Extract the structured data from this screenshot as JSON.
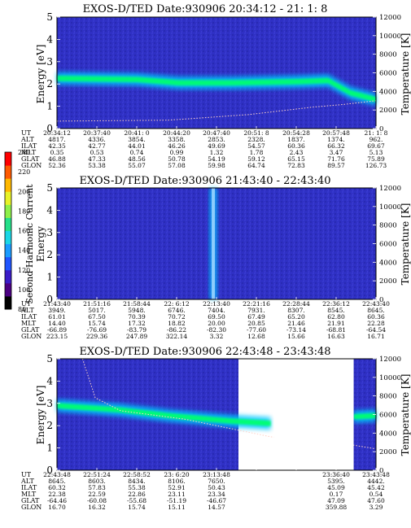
{
  "chart_data": [
    {
      "type": "heatmap",
      "title": "EXOS-D/TED   Date:930906  20:34:12 - 21: 1: 8",
      "ylabel": "Energy [eV]",
      "y2label": "Temperature [K]",
      "ylim": [
        0,
        5
      ],
      "y2lim": [
        0,
        12000
      ],
      "yticks": [
        "0",
        "1",
        "2",
        "3",
        "4",
        "5"
      ],
      "y2ticks": [
        "0",
        "2000",
        "4000",
        "6000",
        "8000",
        "10000",
        "12000"
      ],
      "rows": [
        {
          "label": "UT",
          "values": [
            "20:34:12",
            "20:37:40",
            "20:41: 0",
            "20:44:20",
            "20:47:40",
            "20:51: 8",
            "20:54:28",
            "20:57:48",
            "21: 1: 8"
          ]
        },
        {
          "label": "ALT",
          "values": [
            "4817.",
            "4336.",
            "3854.",
            "3358.",
            "2853.",
            "2328.",
            "1837.",
            "1374.",
            "962."
          ]
        },
        {
          "label": "ILAT",
          "values": [
            "42.35",
            "42.77",
            "44.01",
            "46.26",
            "49.69",
            "54.57",
            "60.36",
            "66.32",
            "69.67"
          ]
        },
        {
          "label": "MLT",
          "values": [
            "0.35",
            "0.53",
            "0.74",
            "0.99",
            "1.32",
            "1.78",
            "2.43",
            "3.47",
            "5.13"
          ]
        },
        {
          "label": "GLAT",
          "values": [
            "46.88",
            "47.33",
            "48.56",
            "50.78",
            "54.19",
            "59.12",
            "65.15",
            "71.76",
            "75.89"
          ]
        },
        {
          "label": "GLON",
          "values": [
            "52.36",
            "53.38",
            "55.07",
            "57.08",
            "59.98",
            "64.74",
            "72.83",
            "89.57",
            "126.73"
          ]
        }
      ],
      "band": [
        {
          "t": 0.0,
          "e": 2.25
        },
        {
          "t": 0.25,
          "e": 2.2
        },
        {
          "t": 0.38,
          "e": 2.05
        },
        {
          "t": 0.55,
          "e": 2.05
        },
        {
          "t": 0.75,
          "e": 2.1
        },
        {
          "t": 0.85,
          "e": 2.15
        },
        {
          "t": 0.92,
          "e": 1.6
        },
        {
          "t": 1.0,
          "e": 1.3
        }
      ],
      "temperature_K": [
        {
          "t": 0.0,
          "k": 800
        },
        {
          "t": 0.35,
          "k": 900
        },
        {
          "t": 0.6,
          "k": 1500
        },
        {
          "t": 0.8,
          "k": 2300
        },
        {
          "t": 0.9,
          "k": 2600
        },
        {
          "t": 1.0,
          "k": 3000
        }
      ]
    },
    {
      "type": "heatmap",
      "title": "EXOS-D/TED   Date:930906  21:43:40 - 22:43:40",
      "ylabel": "Energy",
      "y2label": "Temperature [K]",
      "ylim": [
        0,
        5
      ],
      "y2lim": [
        0,
        12000
      ],
      "yticks": [
        "0",
        "1",
        "2",
        "3",
        "4",
        "5"
      ],
      "y2ticks": [
        "0",
        "2000",
        "4000",
        "6000",
        "8000",
        "10000",
        "12000"
      ],
      "rows": [
        {
          "label": "UT",
          "values": [
            "21:43:40",
            "21:51:16",
            "21:58:44",
            "22: 6:12",
            "22:13:40",
            "22:21:16",
            "22:28:44",
            "22:36:12",
            "22:43:40"
          ]
        },
        {
          "label": "ALT",
          "values": [
            "3949.",
            "5017.",
            "5948.",
            "6746.",
            "7404.",
            "7931.",
            "8307.",
            "8545.",
            "8645."
          ]
        },
        {
          "label": "ILAT",
          "values": [
            "61.01",
            "67.50",
            "70.39",
            "70.72",
            "69.50",
            "67.49",
            "65.20",
            "62.80",
            "60.36"
          ]
        },
        {
          "label": "MLT",
          "values": [
            "14.40",
            "15.74",
            "17.32",
            "18.82",
            "20.00",
            "20.85",
            "21.46",
            "21.91",
            "22.28"
          ]
        },
        {
          "label": "GLAT",
          "values": [
            "-66.89",
            "-76.69",
            "-83.79",
            "-86.22",
            "-82.30",
            "-77.60",
            "-73.14",
            "-68.81",
            "-64.54"
          ]
        },
        {
          "label": "GLON",
          "values": [
            "223.15",
            "229.36",
            "247.89",
            "322.14",
            "3.32",
            "12.68",
            "15.66",
            "16.63",
            "16.71"
          ]
        }
      ],
      "spike_time_fraction": 0.49
    },
    {
      "type": "heatmap",
      "title": "EXOS-D/TED   Date:930906  22:43:48 - 23:43:48",
      "ylabel": "Energy [eV]",
      "y2label": "Temperature [K]",
      "ylim": [
        0,
        5
      ],
      "y2lim": [
        0,
        12000
      ],
      "yticks": [
        "0",
        "1",
        "2",
        "3",
        "4",
        "5"
      ],
      "y2ticks": [
        "0",
        "2000",
        "4000",
        "6000",
        "8000",
        "10000",
        "12000"
      ],
      "rows": [
        {
          "label": "UT",
          "values": [
            "22:43:48",
            "22:51:24",
            "22:58:52",
            "23: 6:20",
            "23:13:48",
            "",
            "",
            "23:36:40",
            "23:43:48"
          ]
        },
        {
          "label": "ALT",
          "values": [
            "8645.",
            "8603.",
            "8434.",
            "8106.",
            "7650.",
            "",
            "",
            "5395.",
            "4442."
          ]
        },
        {
          "label": "ILAT",
          "values": [
            "60.32",
            "57.83",
            "55.38",
            "52.91",
            "50.43",
            "",
            "",
            "45.09",
            "45.42"
          ]
        },
        {
          "label": "MLT",
          "values": [
            "22.38",
            "22.59",
            "22.86",
            "23.11",
            "23.34",
            "",
            "",
            "0.17",
            "0.54"
          ]
        },
        {
          "label": "GLAT",
          "values": [
            "-64.46",
            "-60.08",
            "-55.68",
            "-51.19",
            "-46.67",
            "",
            "",
            "47.09",
            "47.60"
          ]
        },
        {
          "label": "GLON",
          "values": [
            "16.70",
            "16.32",
            "15.74",
            "15.11",
            "14.57",
            "",
            "",
            "359.88",
            "3.29"
          ]
        }
      ],
      "band": [
        {
          "t": 0.0,
          "e": 2.9
        },
        {
          "t": 0.2,
          "e": 2.7
        },
        {
          "t": 0.35,
          "e": 2.45
        },
        {
          "t": 0.55,
          "e": 2.2
        },
        {
          "t": 0.67,
          "e": 2.1
        }
      ],
      "band2": [
        {
          "t": 0.93,
          "e": 2.4
        },
        {
          "t": 1.0,
          "e": 2.45
        }
      ],
      "data_gap_time_fraction": [
        0.68,
        0.93
      ],
      "temperature_K": [
        {
          "t": 0.08,
          "k": 12000
        },
        {
          "t": 0.12,
          "k": 7800
        },
        {
          "t": 0.2,
          "k": 6400
        },
        {
          "t": 0.4,
          "k": 5500
        },
        {
          "t": 0.67,
          "k": 3600
        },
        {
          "t": 0.93,
          "k": 2700
        },
        {
          "t": 1.0,
          "k": 2300
        }
      ]
    }
  ],
  "colorbar": {
    "label": "Second Harmonic Current",
    "ticks": [
      "80",
      "100",
      "120",
      "140",
      "160",
      "180",
      "200",
      "220",
      "240"
    ],
    "colors": [
      "#000000",
      "#4b0082",
      "#3a1cc8",
      "#2055ff",
      "#1a9bff",
      "#1ad6e6",
      "#25e08a",
      "#8ef04a",
      "#e8f228",
      "#ffb800",
      "#ff5a00",
      "#ff0000"
    ]
  },
  "colors": {
    "background_field": "#2e2ec8",
    "band_core": "#00ff70",
    "band_edge": "#00c8ff",
    "spike": "#9bd4ff",
    "trace": "#ffd2c8"
  }
}
